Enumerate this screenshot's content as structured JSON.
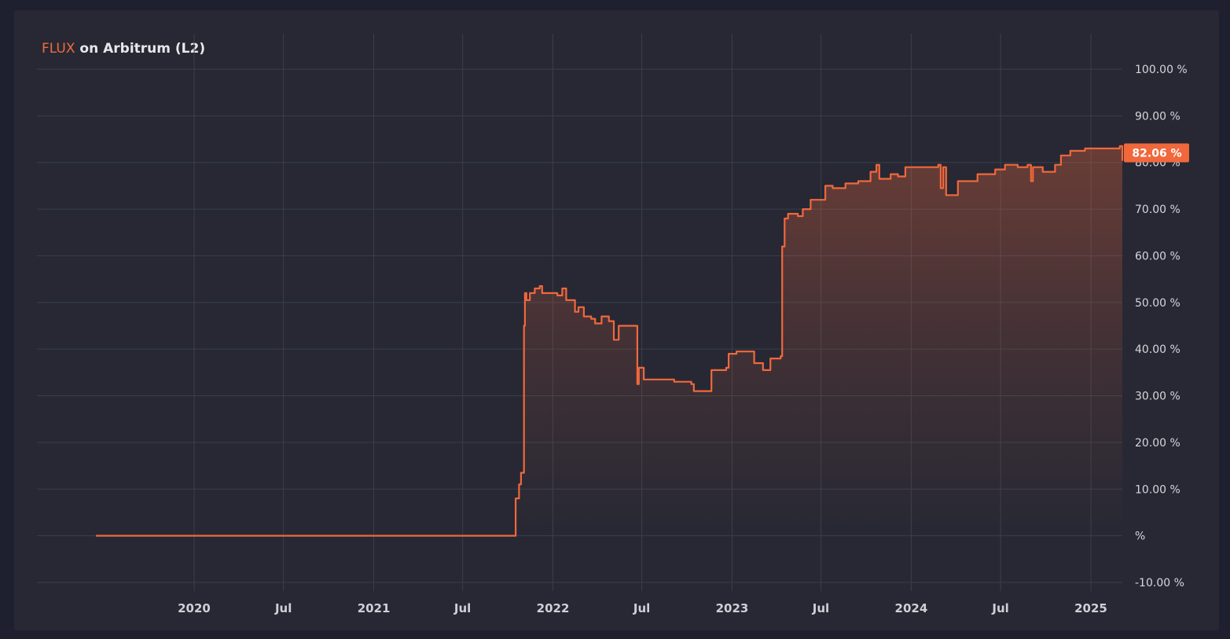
{
  "chart_title": {
    "symbol": "FLUX",
    "rest": " on Arbitrum (L2)"
  },
  "last_value_label": "82.06 %",
  "colors": {
    "line": "#f0683c",
    "badge": "#f0683c",
    "background": "#272834",
    "grid": "#37404a"
  },
  "chart_data": {
    "type": "area",
    "title": "FLUX on Arbitrum (L2)",
    "xlabel": "",
    "ylabel": "",
    "ylim": [
      -10,
      100
    ],
    "y_ticks": [
      100,
      90,
      80,
      70,
      60,
      50,
      40,
      30,
      20,
      10,
      0,
      -10
    ],
    "y_tick_labels": [
      "100.00 %",
      "90.00 %",
      "80.00 %",
      "70.00 %",
      "60.00 %",
      "50.00 %",
      "40.00 %",
      "30.00 %",
      "20.00 %",
      "10.00 %",
      "%",
      "-10.00 %"
    ],
    "x_tick_dates": [
      "2020-01-01",
      "2020-07-01",
      "2021-01-01",
      "2021-07-01",
      "2022-01-01",
      "2022-07-01",
      "2023-01-01",
      "2023-07-01",
      "2024-01-01",
      "2024-07-01",
      "2025-01-01"
    ],
    "x_tick_labels": [
      "2020",
      "Jul",
      "2021",
      "Jul",
      "2022",
      "Jul",
      "2023",
      "Jul",
      "2024",
      "Jul",
      "2025"
    ],
    "grid": true,
    "last_value": 82.06,
    "series": [
      {
        "points": [
          [
            "2019-06-15",
            0
          ],
          [
            "2021-10-15",
            0
          ],
          [
            "2021-10-17",
            8
          ],
          [
            "2021-10-22",
            8
          ],
          [
            "2021-10-24",
            11
          ],
          [
            "2021-10-28",
            13.5
          ],
          [
            "2021-11-01",
            13.5
          ],
          [
            "2021-11-03",
            45
          ],
          [
            "2021-11-05",
            52
          ],
          [
            "2021-11-08",
            50.5
          ],
          [
            "2021-11-15",
            52
          ],
          [
            "2021-11-25",
            53
          ],
          [
            "2021-12-05",
            53.5
          ],
          [
            "2021-12-10",
            52
          ],
          [
            "2022-01-10",
            51.5
          ],
          [
            "2022-01-20",
            53
          ],
          [
            "2022-01-28",
            50.5
          ],
          [
            "2022-02-15",
            48
          ],
          [
            "2022-02-22",
            49
          ],
          [
            "2022-03-05",
            47
          ],
          [
            "2022-03-20",
            46.5
          ],
          [
            "2022-03-28",
            45.5
          ],
          [
            "2022-04-10",
            47
          ],
          [
            "2022-04-25",
            46
          ],
          [
            "2022-05-05",
            42
          ],
          [
            "2022-05-15",
            45
          ],
          [
            "2022-06-20",
            45
          ],
          [
            "2022-06-22",
            32.5
          ],
          [
            "2022-06-25",
            36
          ],
          [
            "2022-07-05",
            33.5
          ],
          [
            "2022-08-20",
            33.5
          ],
          [
            "2022-09-05",
            33
          ],
          [
            "2022-10-10",
            32.5
          ],
          [
            "2022-10-15",
            31
          ],
          [
            "2022-11-15",
            31
          ],
          [
            "2022-11-20",
            35.5
          ],
          [
            "2022-12-20",
            36
          ],
          [
            "2022-12-25",
            39
          ],
          [
            "2023-01-05",
            39
          ],
          [
            "2023-01-10",
            39.5
          ],
          [
            "2023-02-15",
            37
          ],
          [
            "2023-03-05",
            35.5
          ],
          [
            "2023-03-20",
            38
          ],
          [
            "2023-04-10",
            38.5
          ],
          [
            "2023-04-13",
            62
          ],
          [
            "2023-04-18",
            68
          ],
          [
            "2023-04-25",
            69
          ],
          [
            "2023-05-15",
            68.5
          ],
          [
            "2023-05-25",
            70
          ],
          [
            "2023-06-10",
            72
          ],
          [
            "2023-07-01",
            72
          ],
          [
            "2023-07-10",
            75
          ],
          [
            "2023-07-25",
            74.5
          ],
          [
            "2023-08-20",
            75.5
          ],
          [
            "2023-09-15",
            76
          ],
          [
            "2023-10-10",
            78
          ],
          [
            "2023-10-22",
            79.5
          ],
          [
            "2023-10-28",
            76.5
          ],
          [
            "2023-11-20",
            77.5
          ],
          [
            "2023-12-05",
            77
          ],
          [
            "2023-12-20",
            79
          ],
          [
            "2024-02-25",
            79.5
          ],
          [
            "2024-03-01",
            74.5
          ],
          [
            "2024-03-06",
            79
          ],
          [
            "2024-03-12",
            73
          ],
          [
            "2024-04-05",
            76
          ],
          [
            "2024-05-15",
            77.5
          ],
          [
            "2024-06-20",
            78.5
          ],
          [
            "2024-07-10",
            79.5
          ],
          [
            "2024-08-05",
            79
          ],
          [
            "2024-08-25",
            79.5
          ],
          [
            "2024-09-01",
            76
          ],
          [
            "2024-09-05",
            79
          ],
          [
            "2024-09-25",
            78
          ],
          [
            "2024-10-20",
            79.5
          ],
          [
            "2024-11-01",
            81.5
          ],
          [
            "2024-11-20",
            82.5
          ],
          [
            "2024-12-20",
            83
          ],
          [
            "2025-02-15",
            83
          ],
          [
            "2025-03-01",
            83.5
          ],
          [
            "2025-03-12",
            83
          ],
          [
            "2025-03-20",
            82
          ],
          [
            "2025-03-27",
            80.5
          ],
          [
            "2025-03-30",
            82.06
          ]
        ]
      }
    ]
  }
}
